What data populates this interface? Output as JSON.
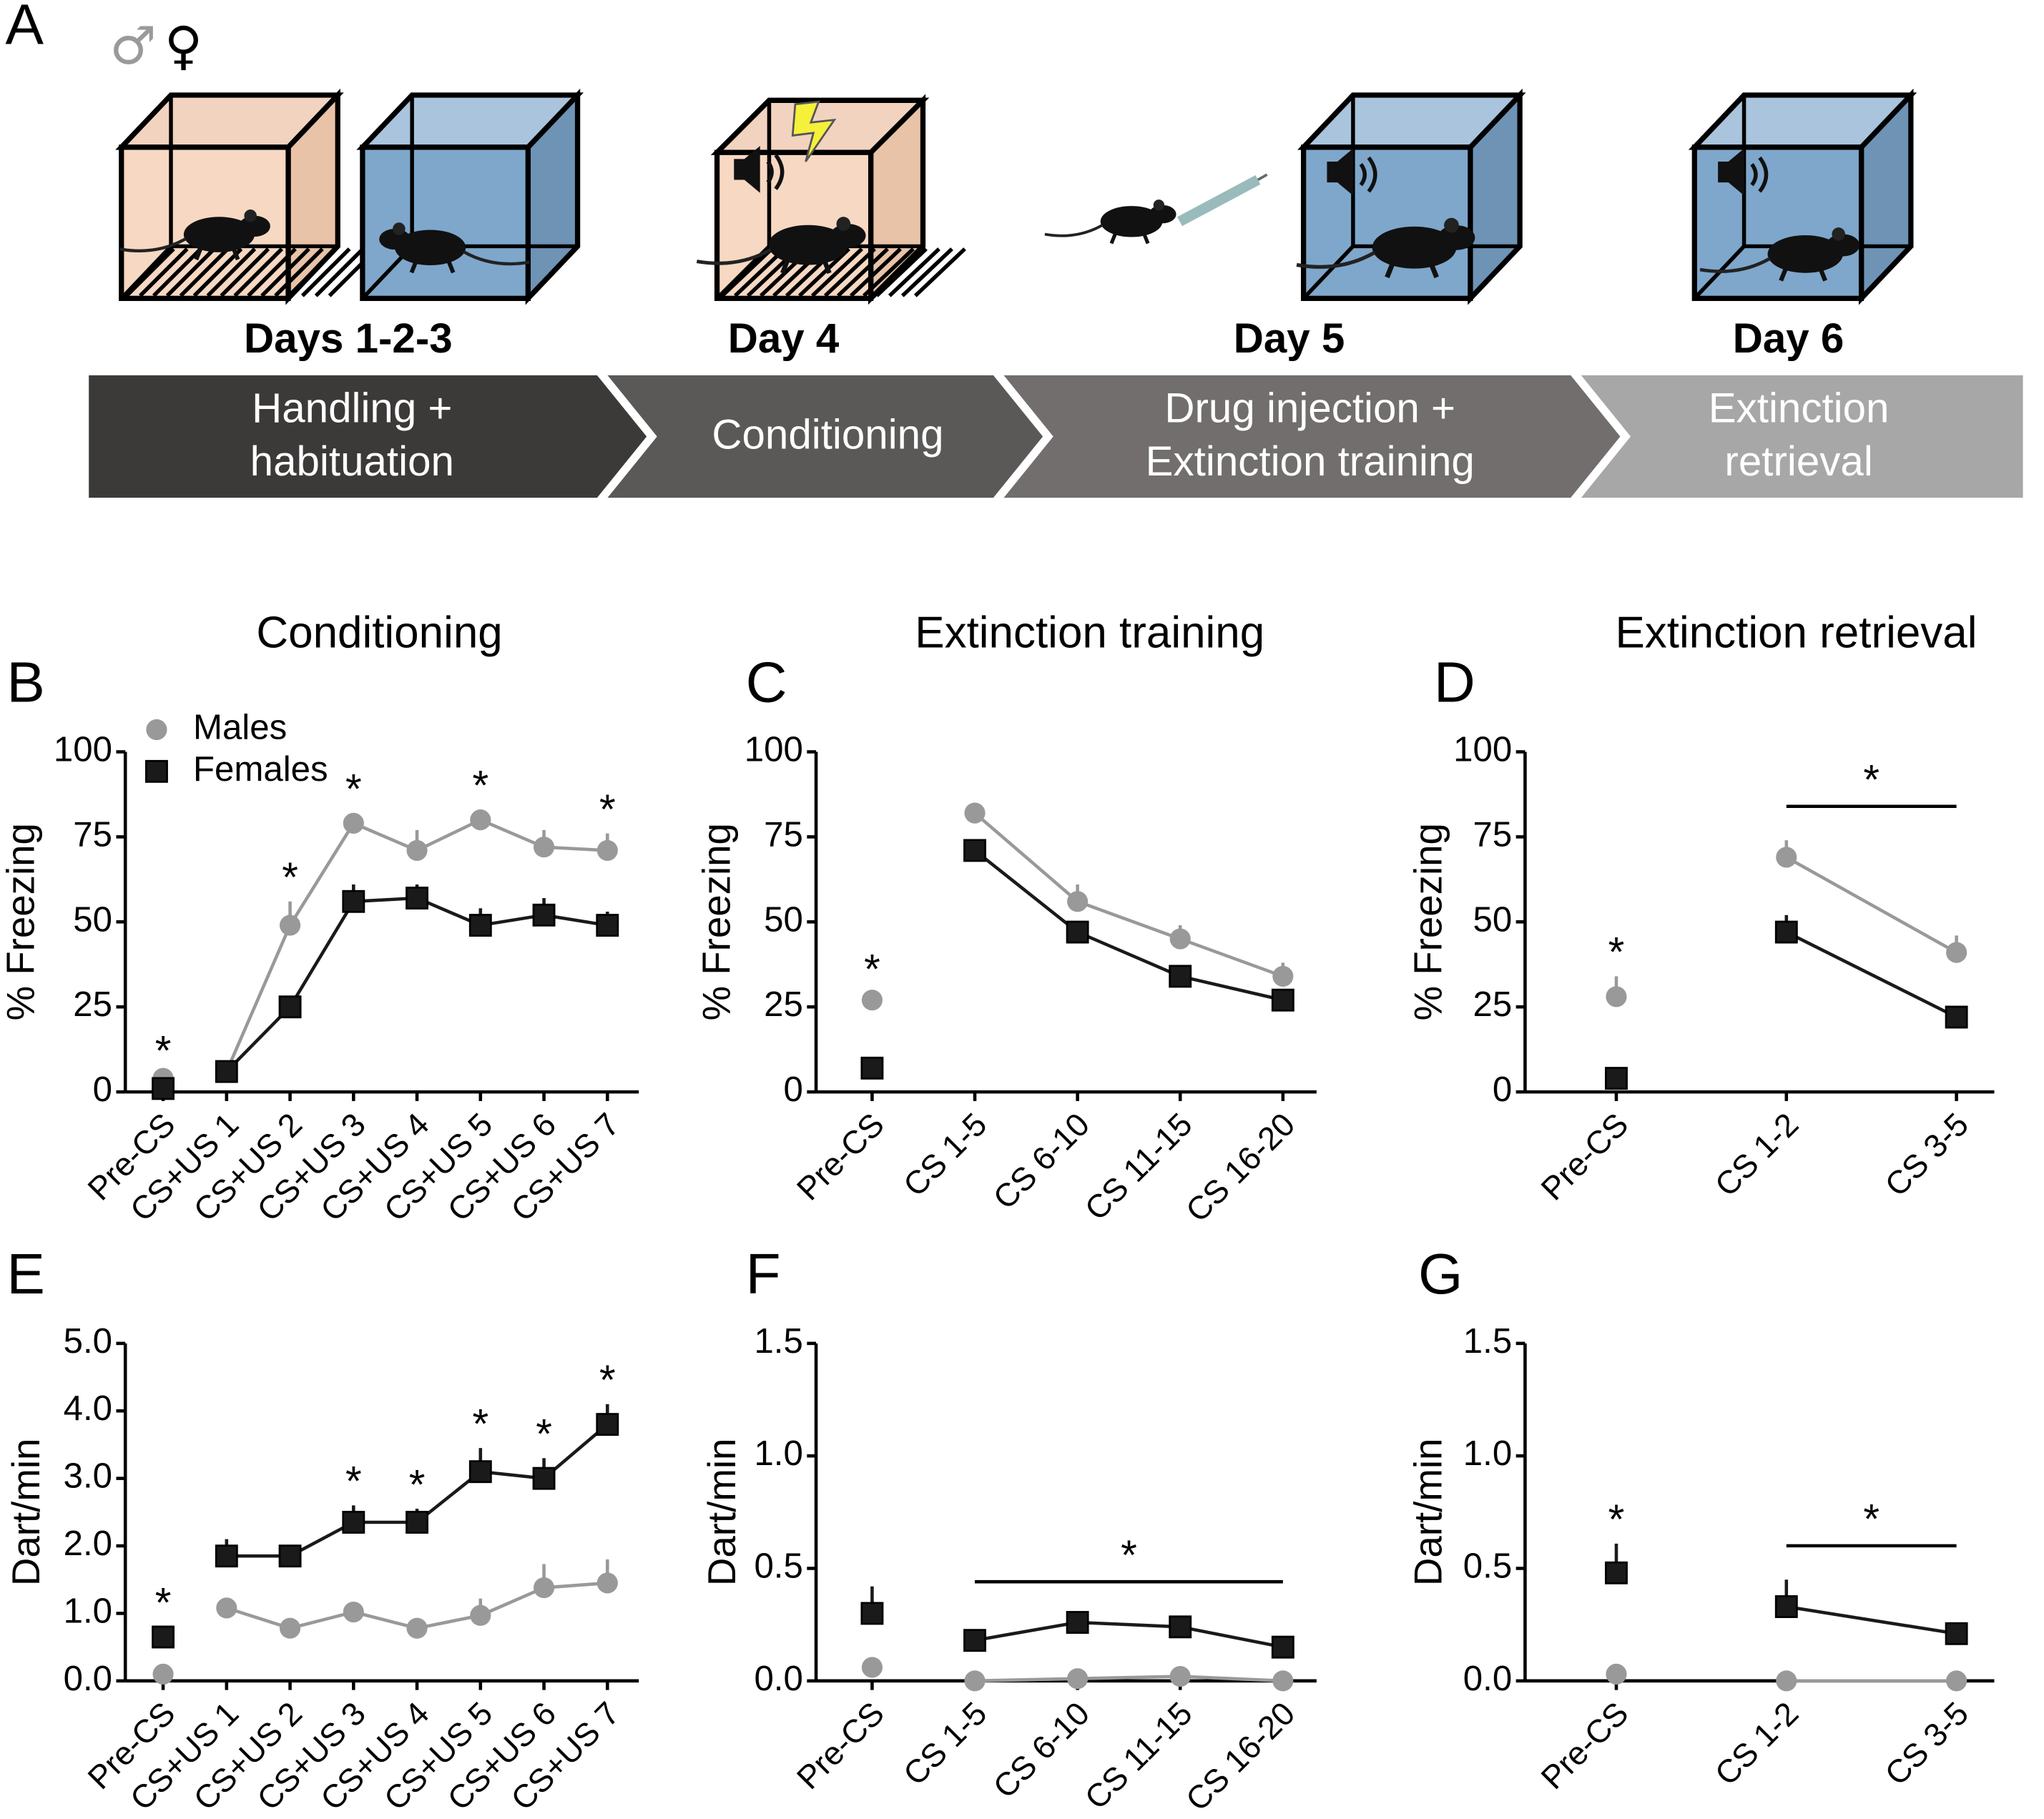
{
  "timeline": {
    "panel_label": "A",
    "sexes": [
      "♂",
      "♀"
    ],
    "stages": [
      {
        "day": "Days 1-2-3",
        "lines": [
          "Handling +",
          "habituation"
        ]
      },
      {
        "day": "Day 4",
        "lines": [
          "Conditioning"
        ]
      },
      {
        "day": "Day 5",
        "lines": [
          "Drug injection +",
          "Extinction training"
        ]
      },
      {
        "day": "Day 6",
        "lines": [
          "Extinction",
          "retrieval"
        ]
      }
    ]
  },
  "chart_data": [
    {
      "type": "line",
      "panel_label": "B",
      "title": "Conditioning",
      "y_label": "% Freezing",
      "categories": [
        "Pre-CS",
        "CS+US 1",
        "CS+US 2",
        "CS+US 3",
        "CS+US 4",
        "CS+US 5",
        "CS+US 6",
        "CS+US 7"
      ],
      "series": [
        {
          "name": "Males",
          "color": "#999999",
          "marker": "circle",
          "values": [
            4,
            6,
            49,
            79,
            71,
            80,
            72,
            71
          ],
          "errors": [
            1,
            1,
            7,
            3,
            6,
            3,
            5,
            5
          ]
        },
        {
          "name": "Females",
          "color": "#1a1a1a",
          "marker": "square",
          "values": [
            1,
            6,
            25,
            56,
            57,
            49,
            52,
            49
          ],
          "errors": [
            1,
            1,
            3,
            5,
            4,
            5,
            5,
            4
          ]
        }
      ],
      "ylim": [
        0,
        100
      ],
      "yticks": [
        0,
        25,
        50,
        75,
        100
      ],
      "sig_marks": [
        "*",
        null,
        "*",
        "*",
        null,
        "*",
        null,
        "*"
      ],
      "legend": "upper left"
    },
    {
      "type": "line",
      "panel_label": "C",
      "title": "Extinction training",
      "y_label": "% Freezing",
      "categories": [
        "Pre-CS",
        "CS 1-5",
        "CS 6-10",
        "CS 11-15",
        "CS 16-20"
      ],
      "series": [
        {
          "name": "Males",
          "color": "#999999",
          "marker": "circle",
          "values": [
            27,
            82,
            56,
            45,
            34
          ],
          "errors": [
            2,
            2,
            5,
            4,
            4
          ]
        },
        {
          "name": "Females",
          "color": "#1a1a1a",
          "marker": "square",
          "values": [
            7,
            71,
            47,
            34,
            27
          ],
          "errors": [
            2,
            2,
            3,
            3,
            2
          ]
        }
      ],
      "ylim": [
        0,
        100
      ],
      "yticks": [
        0,
        25,
        50,
        75,
        100
      ],
      "sig_marks": [
        "*",
        null,
        null,
        null,
        null
      ]
    },
    {
      "type": "line",
      "panel_label": "D",
      "title": "Extinction retrieval",
      "y_label": "% Freezing",
      "categories": [
        "Pre-CS",
        "CS 1-2",
        "CS 3-5"
      ],
      "series": [
        {
          "name": "Males",
          "color": "#999999",
          "marker": "circle",
          "values": [
            28,
            69,
            41
          ],
          "errors": [
            6,
            5,
            5
          ]
        },
        {
          "name": "Females",
          "color": "#1a1a1a",
          "marker": "square",
          "values": [
            4,
            47,
            22
          ],
          "errors": [
            2,
            5,
            3
          ]
        }
      ],
      "ylim": [
        0,
        100
      ],
      "yticks": [
        0,
        25,
        50,
        75,
        100
      ],
      "sig_marks": [
        "*",
        null,
        null
      ],
      "bracket": {
        "label": "*",
        "categories": [
          "CS 1-2",
          "CS 3-5"
        ]
      }
    },
    {
      "type": "line",
      "panel_label": "E",
      "y_label": "Dart/min",
      "categories": [
        "Pre-CS",
        "CS+US 1",
        "CS+US 2",
        "CS+US 3",
        "CS+US 4",
        "CS+US 5",
        "CS+US 6",
        "CS+US 7"
      ],
      "series": [
        {
          "name": "Males",
          "color": "#999999",
          "marker": "circle",
          "values": [
            0.1,
            1.08,
            0.78,
            1.02,
            0.78,
            0.97,
            1.38,
            1.45
          ],
          "errors": [
            0.05,
            0.15,
            0.1,
            0.15,
            0.05,
            0.25,
            0.35,
            0.35
          ]
        },
        {
          "name": "Females",
          "color": "#1a1a1a",
          "marker": "square",
          "values": [
            0.65,
            1.85,
            1.85,
            2.35,
            2.35,
            3.1,
            3.0,
            3.8
          ],
          "errors": [
            0.15,
            0.25,
            0.15,
            0.25,
            0.2,
            0.35,
            0.3,
            0.3
          ]
        }
      ],
      "ylim": [
        0,
        5
      ],
      "yticks": [
        {
          "value": 0,
          "label": "0.0"
        },
        {
          "value": 1,
          "label": "1.0"
        },
        {
          "value": 2,
          "label": "2.0"
        },
        {
          "value": 3,
          "label": "3.0"
        },
        {
          "value": 4,
          "label": "4.0"
        },
        {
          "value": 5,
          "label": "5.0"
        }
      ],
      "sig_marks": [
        "*",
        null,
        null,
        "*",
        "*",
        "*",
        "*",
        "*"
      ]
    },
    {
      "type": "line",
      "panel_label": "F",
      "y_label": "Dart/min",
      "categories": [
        "Pre-CS",
        "CS 1-5",
        "CS 6-10",
        "CS 11-15",
        "CS 16-20"
      ],
      "series": [
        {
          "name": "Males",
          "color": "#999999",
          "marker": "circle",
          "values": [
            0.06,
            0.0,
            0.01,
            0.02,
            0.0
          ],
          "errors": [
            0.01,
            0,
            0,
            0.01,
            0
          ]
        },
        {
          "name": "Females",
          "color": "#1a1a1a",
          "marker": "square",
          "values": [
            0.3,
            0.18,
            0.26,
            0.24,
            0.15
          ],
          "errors": [
            0.12,
            0.05,
            0.03,
            0.04,
            0.05
          ]
        }
      ],
      "ylim": [
        0,
        1.5
      ],
      "yticks": [
        {
          "value": 0,
          "label": "0.0"
        },
        0.5,
        {
          "value": 1,
          "label": "1.0"
        },
        1.5
      ],
      "sig_marks": [
        null,
        null,
        null,
        null,
        null
      ],
      "bracket": {
        "label": "*",
        "categories": [
          "CS 1-5",
          "CS 16-20"
        ]
      }
    },
    {
      "type": "line",
      "panel_label": "G",
      "y_label": "Dart/min",
      "categories": [
        "Pre-CS",
        "CS 1-2",
        "CS 3-5"
      ],
      "series": [
        {
          "name": "Males",
          "color": "#999999",
          "marker": "circle",
          "values": [
            0.03,
            0.0,
            0.0
          ],
          "errors": [
            0,
            0,
            0
          ]
        },
        {
          "name": "Females",
          "color": "#1a1a1a",
          "marker": "square",
          "values": [
            0.48,
            0.33,
            0.21
          ],
          "errors": [
            0.13,
            0.12,
            0.03
          ]
        }
      ],
      "ylim": [
        0,
        1.5
      ],
      "yticks": [
        {
          "value": 0,
          "label": "0.0"
        },
        0.5,
        {
          "value": 1,
          "label": "1.0"
        },
        1.5
      ],
      "sig_marks": [
        "*",
        null,
        null
      ],
      "bracket": {
        "label": "*",
        "categories": [
          "CS 1-2",
          "CS 3-5"
        ]
      }
    }
  ]
}
